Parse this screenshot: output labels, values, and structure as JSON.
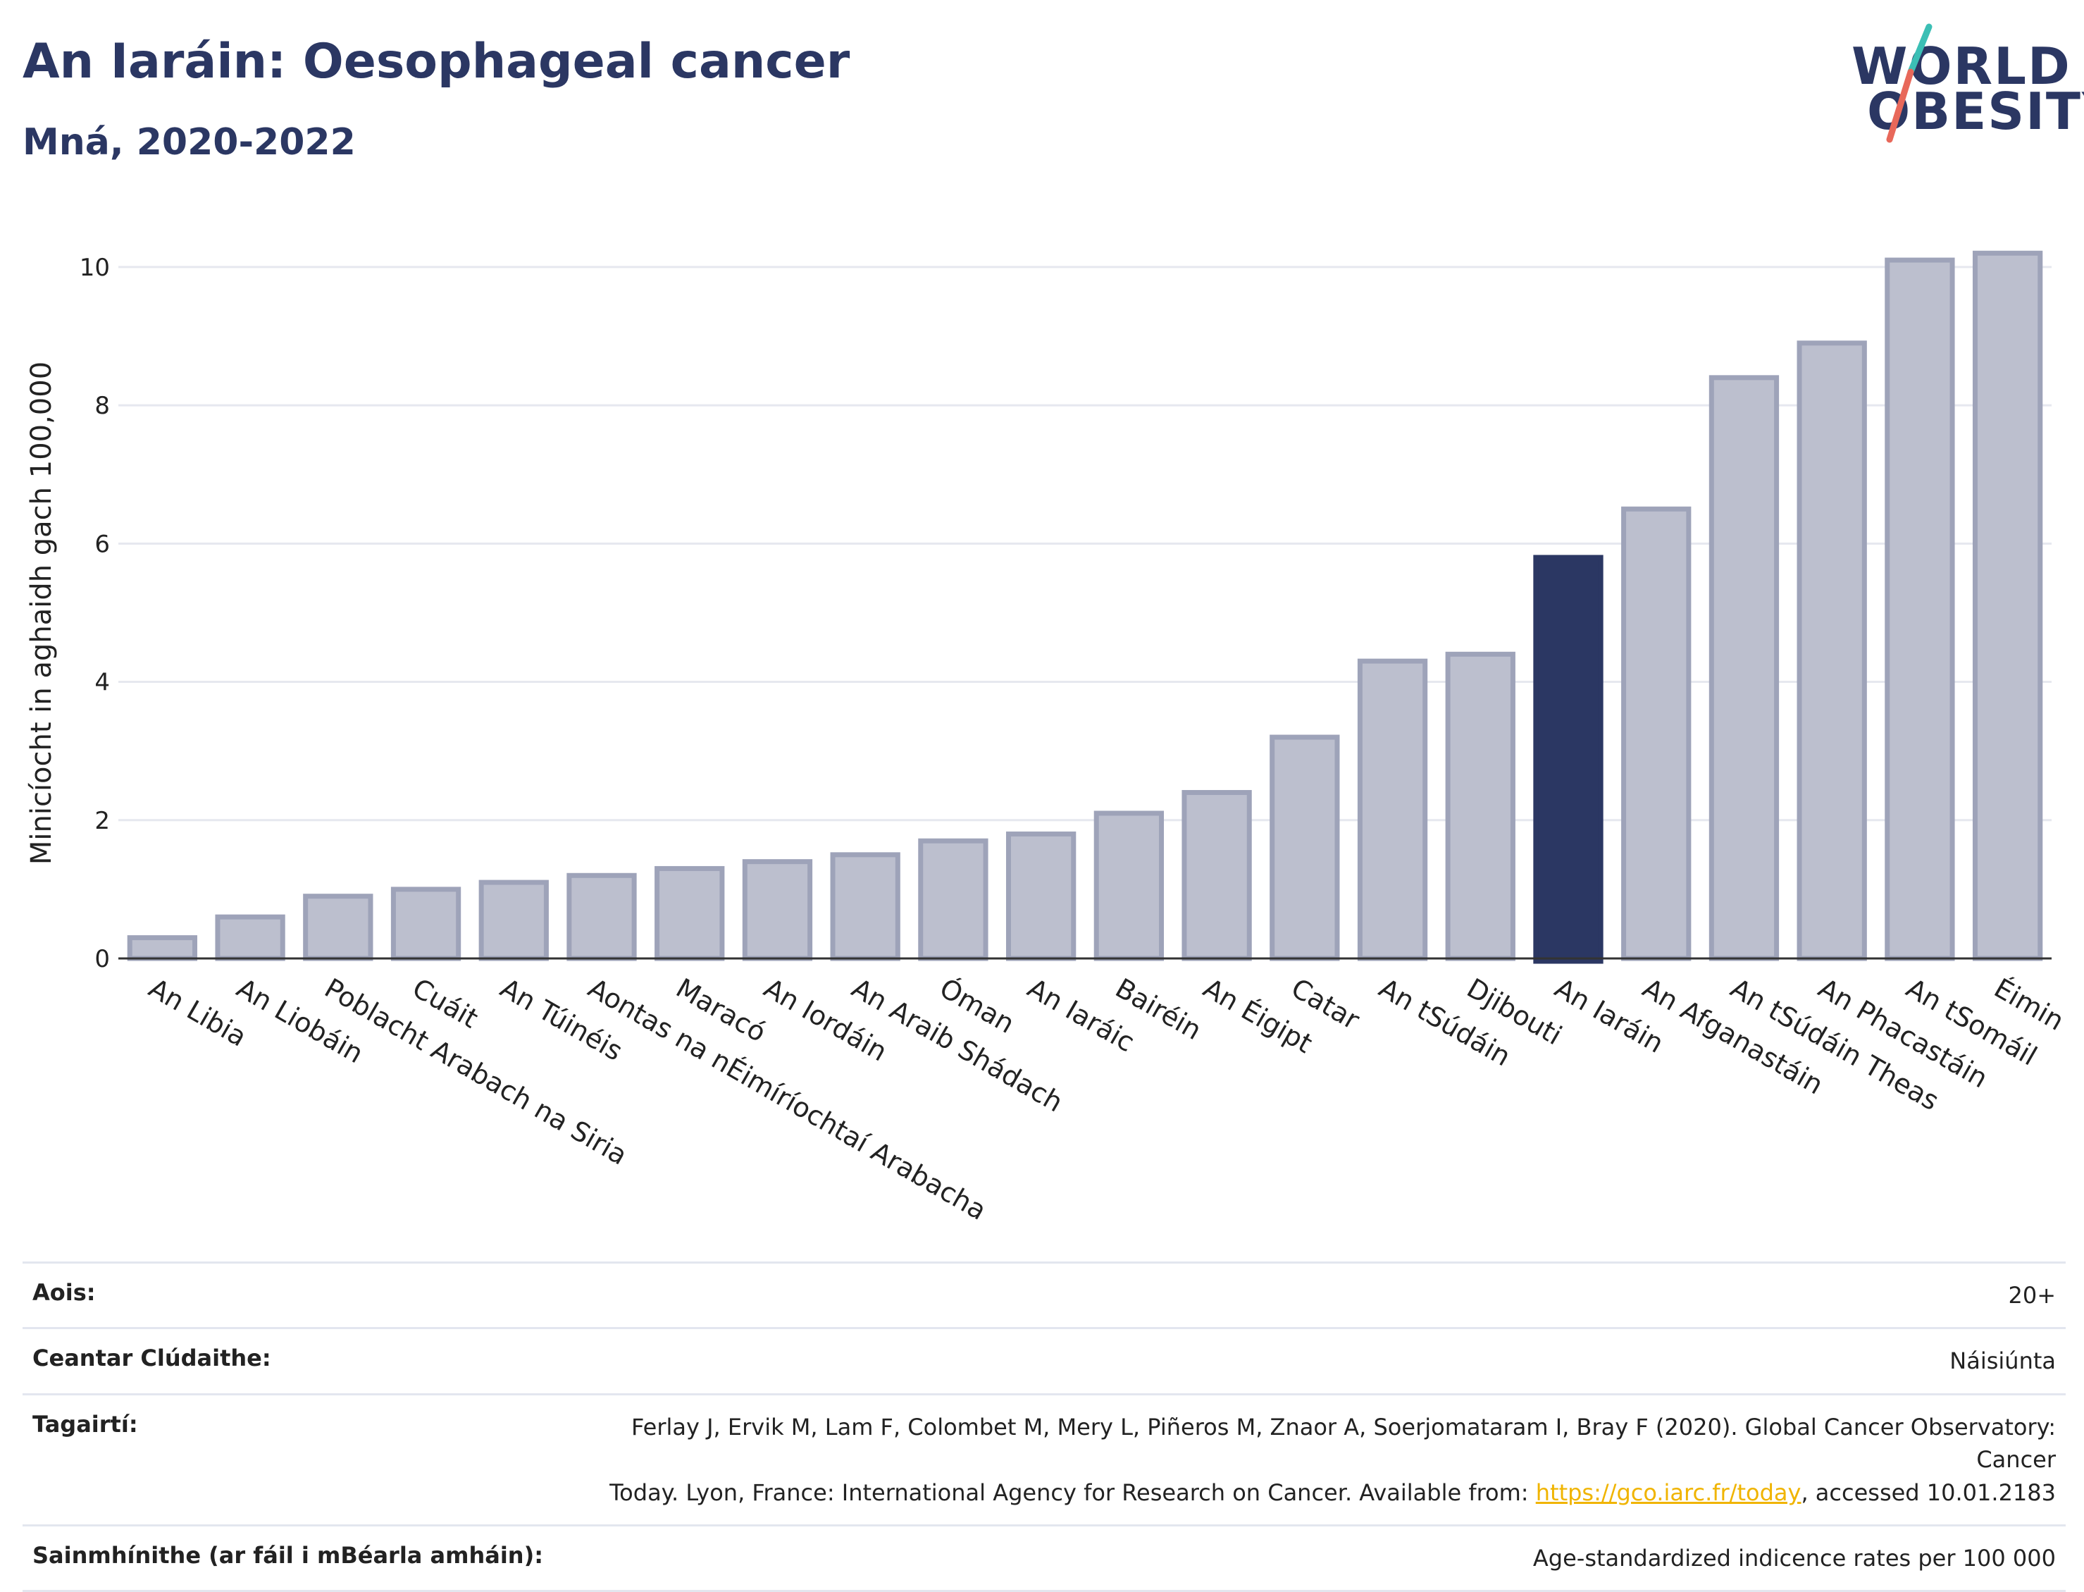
{
  "header": {
    "title": "An Iaráin: Oesophageal cancer",
    "subtitle": "Mná, 2020-2022"
  },
  "logo": {
    "line1": "WORLD",
    "line2": "OBESITY",
    "colors": {
      "text": "#2b3763",
      "slash_top": "#3bbfb5",
      "slash_bottom": "#e8685a"
    }
  },
  "colors": {
    "bar": "#bcbfce",
    "bar_border": "#9ea3b9",
    "highlight": "#2b3763",
    "grid": "#e6e8ef",
    "baseline": "#333333"
  },
  "chart_data": {
    "type": "bar",
    "ylabel": "Minicíocht in aghaidh gach 100,000",
    "xlabel": "",
    "ylim": [
      0,
      10.6
    ],
    "yticks": [
      0,
      2,
      4,
      6,
      8,
      10
    ],
    "grid": true,
    "highlight_category": "An Iaráin",
    "categories": [
      "An Libia",
      "An Liobáin",
      "Poblacht Arabach na Siria",
      "Cuáit",
      "An Túinéis",
      "Aontas na nÉimíríochtaí Arabacha",
      "Maracó",
      "An Iordáin",
      "An Araib Shádach",
      "Óman",
      "An Iaráic",
      "Bairéin",
      "An Éigipt",
      "Catar",
      "An tSúdáin",
      "Djibouti",
      "An Iaráin",
      "An Afganastáin",
      "An tSúdáin Theas",
      "An Phacastáin",
      "An tSomáil",
      "Éimin"
    ],
    "values": [
      0.3,
      0.6,
      0.9,
      1.0,
      1.1,
      1.2,
      1.3,
      1.4,
      1.5,
      1.7,
      1.8,
      2.1,
      2.4,
      3.2,
      4.3,
      4.4,
      5.8,
      6.5,
      8.4,
      8.9,
      10.1,
      10.2
    ]
  },
  "info": {
    "age_label": "Aois:",
    "age_value": "20+",
    "coverage_label": "Ceantar Clúdaithe:",
    "coverage_value": "Náisiúnta",
    "refs_label": "Tagairtí:",
    "refs_line1": "Ferlay J, Ervik M, Lam F, Colombet M, Mery L, Piñeros M, Znaor A, Soerjomataram I, Bray F (2020). Global Cancer Observatory: Cancer",
    "refs_line2_pre": "Today. Lyon, France: International Agency for Research on Cancer. Available from: ",
    "refs_link": "https://gco.iarc.fr/today",
    "refs_line2_post": ", accessed 10.01.2183",
    "defs_label": "Sainmhínithe (ar fáil i mBéarla amháin):",
    "defs_value": "Age-standardized indicence rates per 100 000"
  }
}
